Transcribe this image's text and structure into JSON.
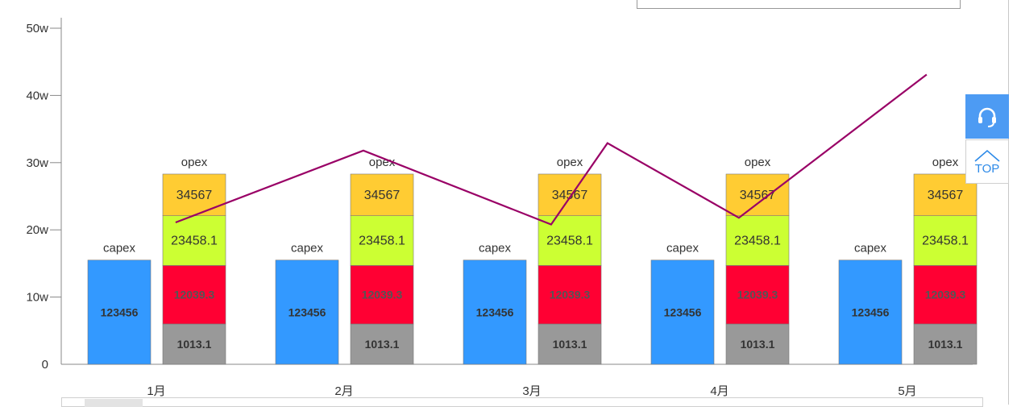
{
  "chart_data": {
    "type": "bar",
    "stacked": true,
    "categories": [
      "1月",
      "2月",
      "3月",
      "4月",
      "5月"
    ],
    "y_axis": {
      "ylim": [
        0,
        50
      ],
      "ticks": [
        {
          "value": 0,
          "label": "0"
        },
        {
          "value": 10,
          "label": "10w"
        },
        {
          "value": 20,
          "label": "20w"
        },
        {
          "value": 30,
          "label": "30w"
        },
        {
          "value": 40,
          "label": "40w"
        },
        {
          "value": 50,
          "label": "50w"
        }
      ]
    },
    "stacks": [
      {
        "label": "capex",
        "segments": [
          {
            "value_label": "123456",
            "height": 15.5,
            "color": "#3399ff",
            "style": "bold"
          }
        ]
      },
      {
        "label": "opex",
        "segments": [
          {
            "value_label": "1013.1",
            "height": 6.0,
            "color": "#999999",
            "style": "bold"
          },
          {
            "value_label": "12039.3",
            "height": 8.7,
            "color": "#ff0033",
            "style": "bold-red"
          },
          {
            "value_label": "23458.1",
            "height": 7.4,
            "color": "#ccff33",
            "style": "plain"
          },
          {
            "value_label": "34567",
            "height": 6.2,
            "color": "#ffcc33",
            "style": "plain"
          }
        ]
      }
    ],
    "line": {
      "color": "#990066",
      "points": [
        {
          "x": 0.3,
          "y": 21.1
        },
        {
          "x": 1.3,
          "y": 31.8
        },
        {
          "x": 2.3,
          "y": 20.8
        },
        {
          "x": 2.6,
          "y": 32.9
        },
        {
          "x": 3.3,
          "y": 21.8
        },
        {
          "x": 4.3,
          "y": 43.1
        }
      ]
    },
    "grid": false,
    "legend": "none"
  },
  "widgets": {
    "service_icon": "headset-icon",
    "top_icon": "chevron-up-icon",
    "top_label": "TOP"
  }
}
